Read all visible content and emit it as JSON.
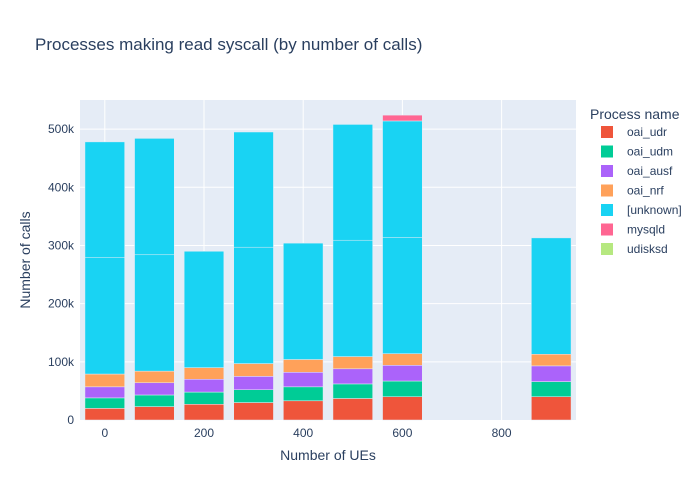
{
  "chart_data": {
    "type": "bar",
    "barmode": "stack",
    "title": "Processes making read syscall (by number of calls)",
    "xlabel": "Number of UEs",
    "ylabel": "Number of calls",
    "xlim": [
      -50,
      950
    ],
    "ylim": [
      0,
      550000
    ],
    "bar_width": 80,
    "x_ticks": [
      0,
      200,
      400,
      600,
      800
    ],
    "x_tick_labels": [
      "0",
      "200",
      "400",
      "600",
      "800"
    ],
    "y_ticks": [
      0,
      100000,
      200000,
      300000,
      400000,
      500000
    ],
    "y_tick_labels": [
      "0",
      "100k",
      "200k",
      "300k",
      "400k",
      "500k"
    ],
    "grid": true,
    "legend_title": "Process name",
    "legend_position": "right",
    "x": [
      0,
      100,
      200,
      300,
      400,
      500,
      600,
      900
    ],
    "series": [
      {
        "name": "oai_udr",
        "color": "#EF553B",
        "values": [
          20000,
          23000,
          27000,
          30000,
          33000,
          37000,
          40000,
          40000
        ]
      },
      {
        "name": "oai_udm",
        "color": "#00CC96",
        "values": [
          18000,
          20000,
          21000,
          22000,
          24000,
          25000,
          27000,
          26000
        ]
      },
      {
        "name": "oai_ausf",
        "color": "#AB63FA",
        "values": [
          19000,
          21000,
          22000,
          23000,
          25000,
          26000,
          27000,
          27000
        ]
      },
      {
        "name": "oai_nrf",
        "color": "#FFA15A",
        "values": [
          22000,
          20000,
          20000,
          22000,
          22000,
          21000,
          20000,
          20000
        ]
      },
      {
        "name": "[unknown]",
        "color": "#19D3F3",
        "segments": [
          [
            200000,
            199000
          ],
          [
            200000,
            200000
          ],
          [
            200000
          ],
          [
            200000,
            198000
          ],
          [
            200000
          ],
          [
            200000,
            199000
          ],
          [
            200000,
            200000
          ],
          [
            200000
          ]
        ],
        "values": [
          399000,
          400000,
          200000,
          398000,
          200000,
          399000,
          400000,
          200000
        ]
      },
      {
        "name": "mysqld",
        "color": "#FF6692",
        "values": [
          0,
          0,
          0,
          0,
          0,
          0,
          10000,
          0
        ]
      },
      {
        "name": "udisksd",
        "color": "#B6E880",
        "values": [
          0,
          0,
          0,
          0,
          0,
          0,
          0,
          0
        ]
      }
    ]
  }
}
